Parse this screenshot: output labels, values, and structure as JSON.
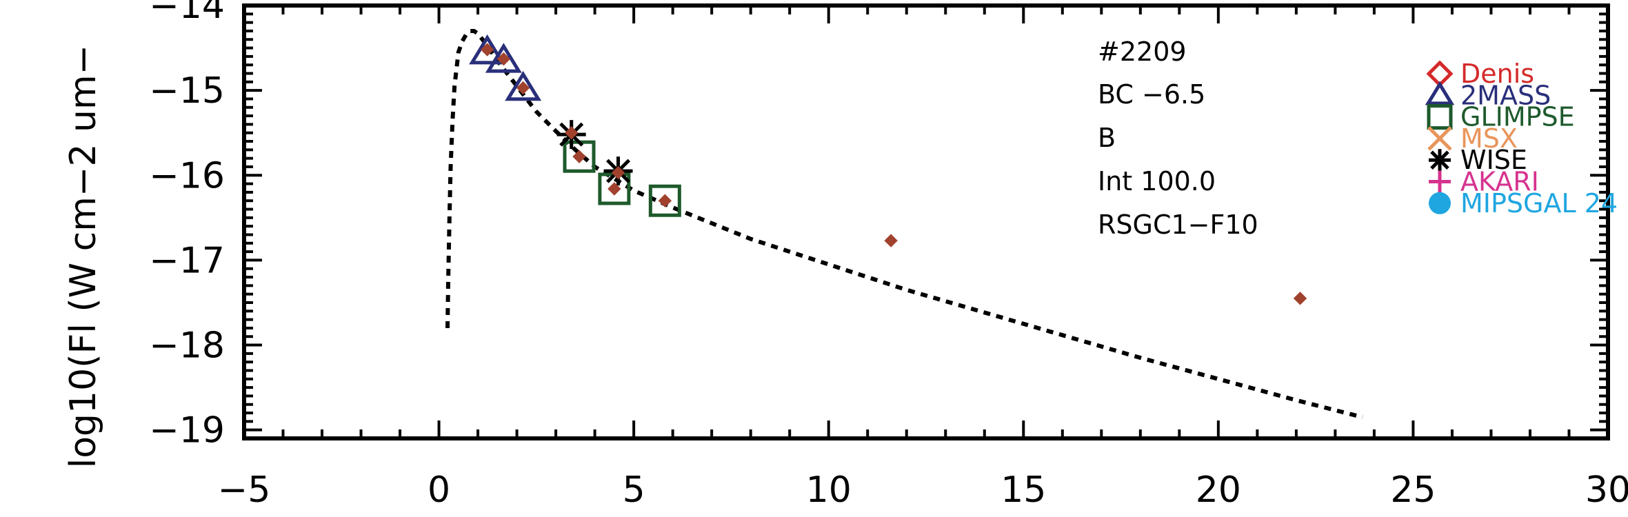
{
  "chart_data": {
    "type": "scatter",
    "ylabel": "log10(Fl (W cm−2 um−",
    "xlim": [
      -5,
      30
    ],
    "ylim": [
      -19.1,
      -14.0
    ],
    "x_ticks": [
      -5,
      0,
      5,
      10,
      15,
      20,
      25,
      30
    ],
    "x_tick_labels": [
      "−5",
      "0",
      "5",
      "10",
      "15",
      "20",
      "25",
      "30"
    ],
    "y_ticks": [
      -14,
      -15,
      -16,
      -17,
      -18,
      -19
    ],
    "y_tick_labels": [
      "−14",
      "−15",
      "−16",
      "−17",
      "−18",
      "−19"
    ],
    "annotations": [
      "#2209",
      "BC −6.5",
      "B",
      "Int 100.0",
      "RSGC1−F10"
    ],
    "model_curve": {
      "style": "dotted",
      "color": "#000000",
      "x": [
        0.22,
        0.24,
        0.27,
        0.3,
        0.35,
        0.4,
        0.5,
        0.6,
        0.7,
        0.8,
        0.9,
        1.0,
        1.2,
        1.5,
        2.0,
        2.5,
        3.0,
        3.5,
        4.0,
        5.0,
        6.0,
        8.0,
        10.0,
        12.0,
        15.0,
        18.0,
        20.0,
        22.0,
        23.7
      ],
      "y": [
        -17.8,
        -17.2,
        -16.5,
        -15.9,
        -15.35,
        -14.95,
        -14.55,
        -14.42,
        -14.34,
        -14.3,
        -14.3,
        -14.33,
        -14.45,
        -14.65,
        -14.95,
        -15.25,
        -15.48,
        -15.7,
        -15.9,
        -16.18,
        -16.38,
        -16.75,
        -17.05,
        -17.35,
        -17.75,
        -18.15,
        -18.4,
        -18.65,
        -18.85
      ]
    },
    "series": [
      {
        "name": "Denis",
        "marker": "diamond-open",
        "color": "#d42a2a",
        "x": [],
        "y": []
      },
      {
        "name": "2MASS",
        "marker": "triangle-open",
        "color": "#2a2f7a",
        "x": [
          1.24,
          1.66,
          2.16
        ],
        "y": [
          -14.55,
          -14.65,
          -14.98
        ]
      },
      {
        "name": "GLIMPSE",
        "marker": "square-open",
        "color": "#1e5a2c",
        "x": [
          3.6,
          4.5,
          5.8
        ],
        "y": [
          -15.78,
          -16.16,
          -16.3
        ]
      },
      {
        "name": "MSX",
        "marker": "x",
        "color": "#e8955a",
        "x": [],
        "y": []
      },
      {
        "name": "WISE",
        "marker": "asterisk",
        "color": "#000000",
        "x": [
          3.4,
          4.6
        ],
        "y": [
          -15.52,
          -15.95
        ]
      },
      {
        "name": "AKARI",
        "marker": "plus",
        "color": "#d6338f",
        "x": [],
        "y": []
      },
      {
        "name": "MIPSGAL 24",
        "marker": "circle-filled",
        "color": "#1fa6e0",
        "x": [],
        "y": []
      }
    ],
    "extra_points": {
      "marker": "diamond-filled",
      "color": "#a0422e",
      "x": [
        1.24,
        1.66,
        2.16,
        3.4,
        3.6,
        4.5,
        4.6,
        5.8,
        11.6,
        22.1
      ],
      "y": [
        -14.52,
        -14.63,
        -14.97,
        -15.5,
        -15.78,
        -16.16,
        -15.97,
        -16.3,
        -16.77,
        -17.45
      ]
    },
    "legend": {
      "position": "top-right"
    }
  }
}
